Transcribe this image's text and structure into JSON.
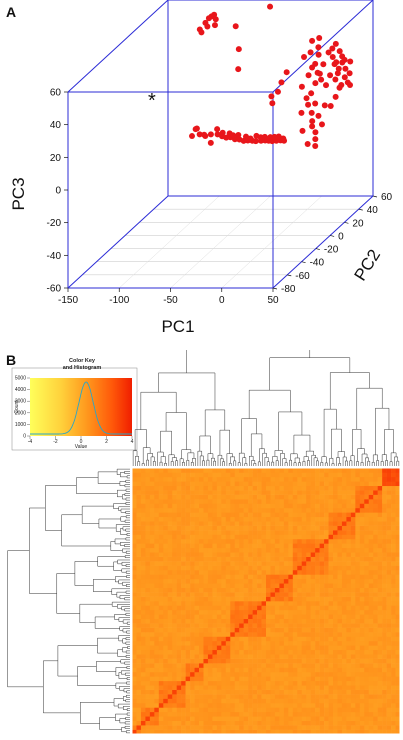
{
  "panels": {
    "a_label": "A",
    "b_label": "B"
  },
  "chart_data": [
    {
      "type": "scatter",
      "projection": "3d",
      "title": "",
      "xlabel": "PC1",
      "ylabel": "PC2",
      "zlabel": "PC3",
      "xlim": [
        -150,
        50
      ],
      "ylim": [
        -80,
        60
      ],
      "zlim": [
        -60,
        60
      ],
      "x_ticks": [
        "-150",
        "-100",
        "-50",
        "0",
        "50"
      ],
      "y_ticks": [
        "-80",
        "-60",
        "-40",
        "-20",
        "0",
        "20",
        "40",
        "60"
      ],
      "z_ticks": [
        "-60",
        "-40",
        "-20",
        "0",
        "20",
        "40",
        "60"
      ],
      "marker_color": "#e8161b",
      "box_color": "#2b2bd6",
      "annotation": "*",
      "points": [
        {
          "x": -110,
          "y": 55,
          "z": 48
        },
        {
          "x": -108,
          "y": 57,
          "z": 50
        },
        {
          "x": -106,
          "y": 52,
          "z": 47
        },
        {
          "x": -104,
          "y": 55,
          "z": 52
        },
        {
          "x": -112,
          "y": 50,
          "z": 46
        },
        {
          "x": -102,
          "y": 58,
          "z": 49
        },
        {
          "x": -109,
          "y": 48,
          "z": 45
        },
        {
          "x": -105,
          "y": 60,
          "z": 51
        },
        {
          "x": -100,
          "y": 54,
          "z": 47
        },
        {
          "x": -70,
          "y": 40,
          "z": 52
        },
        {
          "x": -40,
          "y": 45,
          "z": 62
        },
        {
          "x": 5,
          "y": 55,
          "z": 77
        },
        {
          "x": -60,
          "y": 30,
          "z": 42
        },
        {
          "x": -55,
          "y": 22,
          "z": 33
        },
        {
          "x": -38,
          "y": -62,
          "z": 30
        },
        {
          "x": -32,
          "y": -65,
          "z": 28
        },
        {
          "x": -30,
          "y": -60,
          "z": 25
        },
        {
          "x": -28,
          "y": -55,
          "z": 24
        },
        {
          "x": -25,
          "y": -50,
          "z": 22
        },
        {
          "x": -22,
          "y": -48,
          "z": 20
        },
        {
          "x": -20,
          "y": -45,
          "z": 18
        },
        {
          "x": -18,
          "y": -42,
          "z": 17
        },
        {
          "x": -15,
          "y": -40,
          "z": 15
        },
        {
          "x": -12,
          "y": -38,
          "z": 14
        },
        {
          "x": -10,
          "y": -35,
          "z": 12
        },
        {
          "x": -8,
          "y": -32,
          "z": 11
        },
        {
          "x": -5,
          "y": -30,
          "z": 10
        },
        {
          "x": -3,
          "y": -28,
          "z": 9
        },
        {
          "x": 0,
          "y": -25,
          "z": 8
        },
        {
          "x": 2,
          "y": -22,
          "z": 7
        },
        {
          "x": 4,
          "y": -20,
          "z": 6
        },
        {
          "x": 6,
          "y": -18,
          "z": 5
        },
        {
          "x": 8,
          "y": -15,
          "z": 4
        },
        {
          "x": 10,
          "y": -12,
          "z": 3
        },
        {
          "x": 12,
          "y": -10,
          "z": 2
        },
        {
          "x": -26,
          "y": -58,
          "z": 20
        },
        {
          "x": -24,
          "y": -52,
          "z": 26
        },
        {
          "x": -20,
          "y": -50,
          "z": 23
        },
        {
          "x": -16,
          "y": -46,
          "z": 21
        },
        {
          "x": -14,
          "y": -44,
          "z": 19
        },
        {
          "x": -11,
          "y": -41,
          "z": 18
        },
        {
          "x": -7,
          "y": -36,
          "z": 15
        },
        {
          "x": -4,
          "y": -34,
          "z": 13
        },
        {
          "x": -1,
          "y": -30,
          "z": 13
        },
        {
          "x": 1,
          "y": -27,
          "z": 11
        },
        {
          "x": 3,
          "y": -24,
          "z": 10
        },
        {
          "x": 7,
          "y": -22,
          "z": 9
        },
        {
          "x": 9,
          "y": -19,
          "z": 8
        },
        {
          "x": 11,
          "y": -16,
          "z": 7
        },
        {
          "x": 14,
          "y": -14,
          "z": 5
        },
        {
          "x": -34,
          "y": -66,
          "z": 32
        },
        {
          "x": -36,
          "y": -70,
          "z": 29
        },
        {
          "x": -29,
          "y": -63,
          "z": 27
        },
        {
          "x": 20,
          "y": -30,
          "z": 40
        },
        {
          "x": 22,
          "y": -28,
          "z": 45
        },
        {
          "x": 25,
          "y": -25,
          "z": 50
        },
        {
          "x": 18,
          "y": -35,
          "z": 35
        },
        {
          "x": 15,
          "y": -32,
          "z": 38
        },
        {
          "x": 40,
          "y": 30,
          "z": 20
        },
        {
          "x": 42,
          "y": 32,
          "z": 24
        },
        {
          "x": 45,
          "y": 35,
          "z": 18
        },
        {
          "x": 38,
          "y": 28,
          "z": 28
        },
        {
          "x": 44,
          "y": 30,
          "z": 30
        },
        {
          "x": 46,
          "y": 33,
          "z": 26
        },
        {
          "x": 41,
          "y": 25,
          "z": 32
        },
        {
          "x": 43,
          "y": 27,
          "z": 35
        },
        {
          "x": 47,
          "y": 29,
          "z": 22
        },
        {
          "x": 39,
          "y": 22,
          "z": 36
        },
        {
          "x": 42,
          "y": 20,
          "z": 38
        },
        {
          "x": 45,
          "y": 24,
          "z": 40
        },
        {
          "x": 48,
          "y": 31,
          "z": 34
        },
        {
          "x": 37,
          "y": 26,
          "z": 25
        },
        {
          "x": 40,
          "y": 18,
          "z": 42
        },
        {
          "x": 44,
          "y": 22,
          "z": 44
        },
        {
          "x": 46,
          "y": 26,
          "z": 37
        },
        {
          "x": 36,
          "y": 20,
          "z": 30
        },
        {
          "x": 38,
          "y": 15,
          "z": 46
        },
        {
          "x": 41,
          "y": 16,
          "z": 48
        },
        {
          "x": 43,
          "y": 18,
          "z": 50
        },
        {
          "x": 35,
          "y": 12,
          "z": 40
        },
        {
          "x": 33,
          "y": 10,
          "z": 35
        },
        {
          "x": 30,
          "y": 8,
          "z": 30
        },
        {
          "x": 28,
          "y": 5,
          "z": 25
        },
        {
          "x": 34,
          "y": 2,
          "z": 20
        },
        {
          "x": 32,
          "y": 0,
          "z": 15
        },
        {
          "x": 36,
          "y": -5,
          "z": 12
        },
        {
          "x": 30,
          "y": -10,
          "z": 8
        },
        {
          "x": 38,
          "y": -8,
          "z": 10
        },
        {
          "x": 40,
          "y": -2,
          "z": 14
        },
        {
          "x": 42,
          "y": 4,
          "z": 18
        },
        {
          "x": 45,
          "y": 8,
          "z": 16
        },
        {
          "x": 47,
          "y": 12,
          "z": 20
        },
        {
          "x": 48,
          "y": 16,
          "z": 24
        },
        {
          "x": 39,
          "y": 10,
          "z": 28
        },
        {
          "x": 37,
          "y": 6,
          "z": 33
        },
        {
          "x": 35,
          "y": 4,
          "z": 38
        },
        {
          "x": 31,
          "y": 2,
          "z": 42
        },
        {
          "x": 29,
          "y": 14,
          "z": 45
        },
        {
          "x": 26,
          "y": 18,
          "z": 48
        },
        {
          "x": 24,
          "y": 22,
          "z": 52
        },
        {
          "x": 30,
          "y": 40,
          "z": 70
        },
        {
          "x": 32,
          "y": 42,
          "z": 75
        },
        {
          "x": 34,
          "y": 44,
          "z": 80
        },
        {
          "x": 31,
          "y": 45,
          "z": 72
        },
        {
          "x": 33,
          "y": 47,
          "z": 78
        },
        {
          "x": 35,
          "y": 40,
          "z": 76
        },
        {
          "x": 15,
          "y": 20,
          "z": 30
        },
        {
          "x": 18,
          "y": 25,
          "z": 35
        },
        {
          "x": 12,
          "y": 15,
          "z": 25
        },
        {
          "x": 20,
          "y": 10,
          "z": 20
        },
        {
          "x": 25,
          "y": 5,
          "z": 18
        },
        {
          "x": 22,
          "y": 0,
          "z": 15
        },
        {
          "x": 10,
          "y": 30,
          "z": 40
        },
        {
          "x": 8,
          "y": 35,
          "z": 45
        },
        {
          "x": 5,
          "y": 28,
          "z": 38
        },
        {
          "x": 46,
          "y": -15,
          "z": 5
        },
        {
          "x": 48,
          "y": -18,
          "z": 2
        },
        {
          "x": 44,
          "y": -12,
          "z": 8
        },
        {
          "x": 42,
          "y": -20,
          "z": 4
        },
        {
          "x": 49,
          "y": -10,
          "z": 12
        }
      ]
    },
    {
      "type": "heatmap",
      "title": "",
      "color_key": {
        "title_line1": "Color Key",
        "title_line2": "and Histogram",
        "x_ticks": [
          "-4",
          "-2",
          "0",
          "2",
          "4"
        ],
        "y_ticks": [
          "0",
          "1000",
          "2000",
          "3000",
          "4000",
          "5000"
        ],
        "x_label": "Value",
        "y_label": "Count",
        "colors": [
          "#ffff5a",
          "#ffd23c",
          "#ff9a1e",
          "#ff5a0a",
          "#f01e00"
        ]
      },
      "dendrograms": {
        "row": true,
        "column": true
      },
      "note": "Symmetric correlation-style matrix clustered by hierarchical dendrograms"
    }
  ]
}
